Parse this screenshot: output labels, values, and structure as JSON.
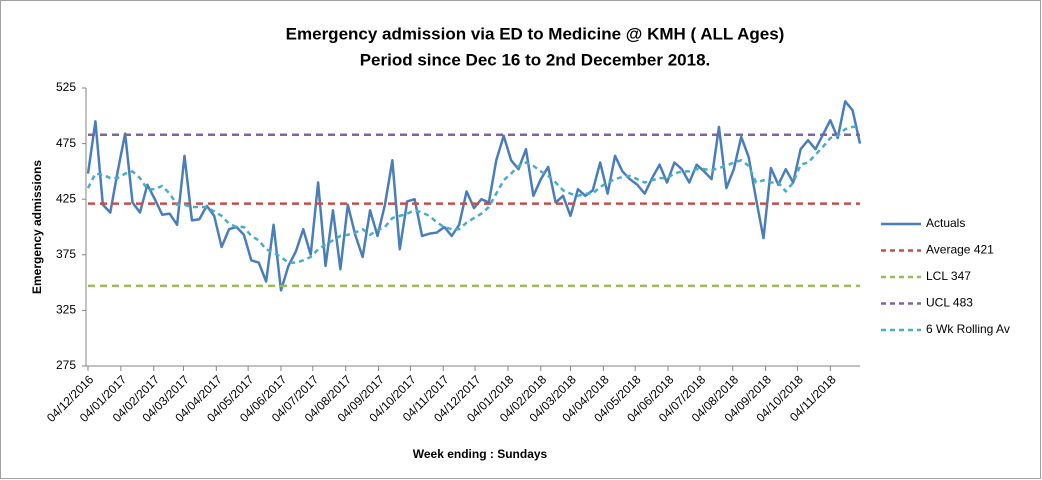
{
  "chart_data": {
    "type": "line",
    "title": "Emergency admission via ED to Medicine @ KMH ( ALL Ages)",
    "subtitle": "Period since Dec 16 to 2nd December 2018.",
    "x_label": "Week ending : Sundays",
    "y_label": "Emergency admissions",
    "x": [
      "04/12/2016",
      "11/12/2016",
      "18/12/2016",
      "25/12/2016",
      "01/01/2017",
      "08/01/2017",
      "15/01/2017",
      "22/01/2017",
      "29/01/2017",
      "05/02/2017",
      "12/02/2017",
      "19/02/2017",
      "26/02/2017",
      "05/03/2017",
      "12/03/2017",
      "19/03/2017",
      "26/03/2017",
      "02/04/2017",
      "09/04/2017",
      "16/04/2017",
      "23/04/2017",
      "30/04/2017",
      "07/05/2017",
      "14/05/2017",
      "21/05/2017",
      "28/05/2017",
      "04/06/2017",
      "11/06/2017",
      "18/06/2017",
      "25/06/2017",
      "02/07/2017",
      "09/07/2017",
      "16/07/2017",
      "23/07/2017",
      "30/07/2017",
      "06/08/2017",
      "13/08/2017",
      "20/08/2017",
      "27/08/2017",
      "03/09/2017",
      "10/09/2017",
      "17/09/2017",
      "24/09/2017",
      "01/10/2017",
      "08/10/2017",
      "15/10/2017",
      "22/10/2017",
      "29/10/2017",
      "05/11/2017",
      "12/11/2017",
      "19/11/2017",
      "26/11/2017",
      "03/12/2017",
      "10/12/2017",
      "17/12/2017",
      "24/12/2017",
      "31/12/2017",
      "07/01/2018",
      "14/01/2018",
      "21/01/2018",
      "28/01/2018",
      "04/02/2018",
      "11/02/2018",
      "18/02/2018",
      "25/02/2018",
      "04/03/2018",
      "11/03/2018",
      "18/03/2018",
      "25/03/2018",
      "01/04/2018",
      "08/04/2018",
      "15/04/2018",
      "22/04/2018",
      "29/04/2018",
      "06/05/2018",
      "13/05/2018",
      "20/05/2018",
      "27/05/2018",
      "03/06/2018",
      "10/06/2018",
      "17/06/2018",
      "24/06/2018",
      "01/07/2018",
      "08/07/2018",
      "15/07/2018",
      "22/07/2018",
      "29/07/2018",
      "05/08/2018",
      "12/08/2018",
      "19/08/2018",
      "26/08/2018",
      "02/09/2018",
      "09/09/2018",
      "16/09/2018",
      "23/09/2018",
      "30/09/2018",
      "07/10/2018",
      "14/10/2018",
      "21/10/2018",
      "28/10/2018",
      "04/11/2018",
      "11/11/2018",
      "18/11/2018",
      "25/11/2018",
      "02/12/2018"
    ],
    "xlim": [
      "04/12/2016",
      "02/12/2018"
    ],
    "xticks": [
      "04/12/2016",
      "04/01/2017",
      "04/02/2017",
      "04/03/2017",
      "04/04/2017",
      "04/05/2017",
      "04/06/2017",
      "04/07/2017",
      "04/08/2017",
      "04/09/2017",
      "04/10/2017",
      "04/11/2017",
      "04/12/2017",
      "04/01/2018",
      "04/02/2018",
      "04/03/2018",
      "04/04/2018",
      "04/05/2018",
      "04/06/2018",
      "04/07/2018",
      "04/08/2018",
      "04/09/2018",
      "04/10/2018",
      "04/11/2018"
    ],
    "ylim": [
      275,
      525
    ],
    "yticks": [
      275,
      325,
      375,
      425,
      475,
      525
    ],
    "grid": false,
    "legend": "right",
    "series": [
      {
        "name": "Actuals",
        "color": "#4a7ebb",
        "dash": false,
        "values": [
          448,
          495,
          420,
          413,
          450,
          484,
          422,
          413,
          438,
          425,
          411,
          412,
          402,
          464,
          406,
          407,
          419,
          410,
          382,
          398,
          400,
          393,
          370,
          368,
          351,
          402,
          343,
          365,
          378,
          398,
          375,
          440,
          365,
          415,
          362,
          420,
          393,
          373,
          415,
          392,
          420,
          460,
          380,
          423,
          425,
          392,
          394,
          395,
          400,
          392,
          402,
          432,
          417,
          425,
          422,
          460,
          482,
          460,
          452,
          470,
          428,
          443,
          454,
          422,
          428,
          410,
          434,
          428,
          433,
          458,
          430,
          464,
          450,
          443,
          438,
          430,
          444,
          456,
          440,
          458,
          452,
          440,
          456,
          450,
          443,
          490,
          435,
          452,
          481,
          463,
          425,
          390,
          453,
          438,
          452,
          440,
          470,
          478,
          470,
          483,
          496,
          480,
          513,
          505,
          475
        ]
      },
      {
        "name": "Average 421",
        "color": "#c0504d",
        "dash": true,
        "value": 421
      },
      {
        "name": "LCL 347",
        "color": "#9bbb59",
        "dash": true,
        "value": 347
      },
      {
        "name": "UCL 483",
        "color": "#8064a2",
        "dash": true,
        "value": 483
      },
      {
        "name": "6 Wk Rolling Av",
        "color": "#4bacc6",
        "dash": true,
        "values": [
          435,
          448,
          447,
          444,
          444,
          448,
          450,
          444,
          434,
          434,
          437,
          430,
          420,
          420,
          418,
          418,
          418,
          414,
          410,
          403,
          400,
          400,
          392,
          388,
          380,
          377,
          373,
          368,
          368,
          370,
          373,
          380,
          384,
          388,
          392,
          393,
          395,
          398,
          393,
          397,
          400,
          408,
          410,
          412,
          415,
          413,
          410,
          404,
          400,
          398,
          398,
          404,
          408,
          412,
          418,
          430,
          442,
          448,
          455,
          458,
          455,
          450,
          446,
          440,
          433,
          430,
          428,
          430,
          430,
          436,
          440,
          443,
          445,
          446,
          443,
          440,
          442,
          444,
          444,
          448,
          450,
          450,
          452,
          452,
          451,
          453,
          455,
          458,
          460,
          455,
          440,
          442,
          440,
          440,
          432,
          440,
          456,
          458,
          465,
          472,
          480,
          482,
          488,
          490,
          490
        ]
      }
    ]
  }
}
